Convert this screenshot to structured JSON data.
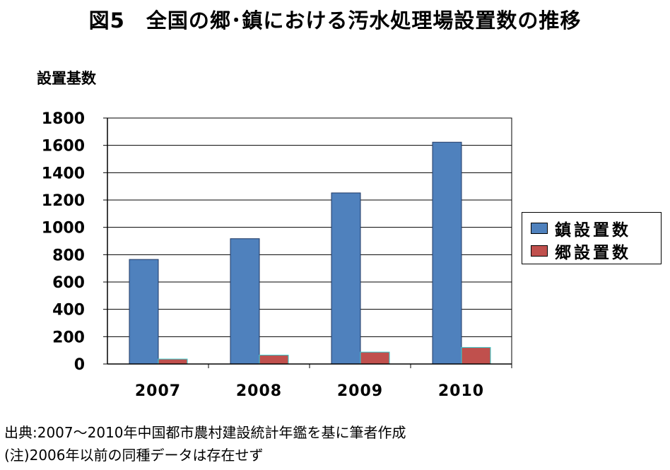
{
  "title": "図5　全国の郷･鎮における汚水処理場設置数の推移",
  "footnotes": {
    "source": "出典:2007～2010年中国都市農村建設統計年鑑を基に筆者作成",
    "note": "(注)2006年以前の同種データは存在せず"
  },
  "colors": {
    "town": "#4f81bd",
    "village": "#c0504d",
    "village_edge": "#33cccc"
  },
  "chart_data": {
    "type": "bar",
    "title": "図5　全国の郷･鎮における汚水処理場設置数の推移",
    "ylabel": "設置基数",
    "xlabel": "",
    "categories": [
      "2007",
      "2008",
      "2009",
      "2010"
    ],
    "series": [
      {
        "name": "鎮設置数",
        "values": [
          765,
          917,
          1252,
          1623
        ]
      },
      {
        "name": "郷設置数",
        "values": [
          36,
          65,
          87,
          121
        ]
      }
    ],
    "ylim": [
      0,
      1800
    ],
    "yticks": [
      "0",
      "200",
      "400",
      "600",
      "800",
      "1000",
      "1200",
      "1400",
      "1600",
      "1800"
    ],
    "grid": true,
    "legend": "right"
  }
}
